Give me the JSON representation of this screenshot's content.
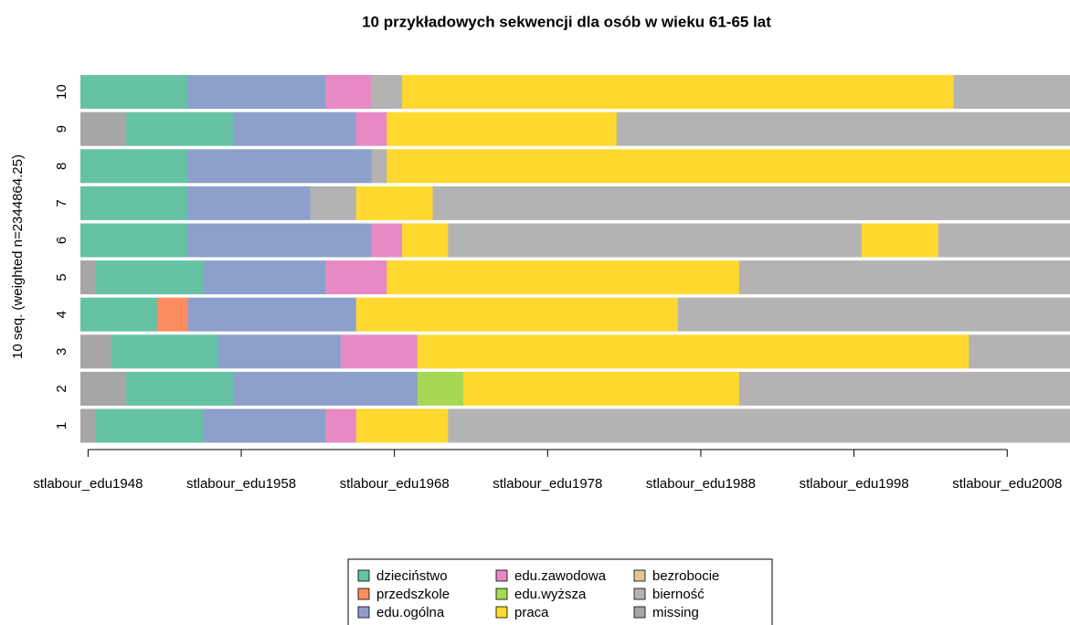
{
  "chart_data": {
    "type": "sequence-index",
    "title": "10 przykładowych sekwencji dla osób w wieku 61-65 lat",
    "y_label": "10 seq. (weighted n=2344864.25)",
    "xlim": [
      1947.5,
      2012.1
    ],
    "xticks": [
      {
        "value": 1948,
        "label": "stlabour_edu1948"
      },
      {
        "value": 1958,
        "label": "stlabour_edu1958"
      },
      {
        "value": 1968,
        "label": "stlabour_edu1968"
      },
      {
        "value": 1978,
        "label": "stlabour_edu1978"
      },
      {
        "value": 1988,
        "label": "stlabour_edu1988"
      },
      {
        "value": 1998,
        "label": "stlabour_edu1998"
      },
      {
        "value": 2008,
        "label": "stlabour_edu2008"
      }
    ],
    "states": [
      {
        "name": "dzieciństwo",
        "color": "#66c2a5"
      },
      {
        "name": "przedszkole",
        "color": "#fc8d62"
      },
      {
        "name": "edu.ogólna",
        "color": "#8da0cb"
      },
      {
        "name": "edu.zawodowa",
        "color": "#e78ac3"
      },
      {
        "name": "edu.wyższa",
        "color": "#a6d854"
      },
      {
        "name": "praca",
        "color": "#ffd92f"
      },
      {
        "name": "bezrobocie",
        "color": "#e5c494"
      },
      {
        "name": "bierność",
        "color": "#b3b3b3"
      },
      {
        "name": "missing",
        "color": "#a6a6a6"
      }
    ],
    "sequences": [
      {
        "name": "1",
        "spells": [
          {
            "state": "missing",
            "years": 1
          },
          {
            "state": "dzieciństwo",
            "years": 7
          },
          {
            "state": "edu.ogólna",
            "years": 8
          },
          {
            "state": "edu.zawodowa",
            "years": 2
          },
          {
            "state": "praca",
            "years": 6
          },
          {
            "state": "bierność",
            "years": 41
          }
        ]
      },
      {
        "name": "2",
        "spells": [
          {
            "state": "missing",
            "years": 3
          },
          {
            "state": "dzieciństwo",
            "years": 7
          },
          {
            "state": "edu.ogólna",
            "years": 12
          },
          {
            "state": "edu.wyższa",
            "years": 3
          },
          {
            "state": "praca",
            "years": 18
          },
          {
            "state": "bierność",
            "years": 22
          }
        ]
      },
      {
        "name": "3",
        "spells": [
          {
            "state": "missing",
            "years": 2
          },
          {
            "state": "dzieciństwo",
            "years": 7
          },
          {
            "state": "edu.ogólna",
            "years": 8
          },
          {
            "state": "edu.zawodowa",
            "years": 5
          },
          {
            "state": "praca",
            "years": 36
          },
          {
            "state": "bierność",
            "years": 7
          }
        ]
      },
      {
        "name": "4",
        "spells": [
          {
            "state": "dzieciństwo",
            "years": 5
          },
          {
            "state": "przedszkole",
            "years": 2
          },
          {
            "state": "edu.ogólna",
            "years": 11
          },
          {
            "state": "praca",
            "years": 21
          },
          {
            "state": "bierność",
            "years": 26
          }
        ]
      },
      {
        "name": "5",
        "spells": [
          {
            "state": "missing",
            "years": 1
          },
          {
            "state": "dzieciństwo",
            "years": 7
          },
          {
            "state": "edu.ogólna",
            "years": 8
          },
          {
            "state": "edu.zawodowa",
            "years": 4
          },
          {
            "state": "praca",
            "years": 23
          },
          {
            "state": "bierność",
            "years": 22
          }
        ]
      },
      {
        "name": "6",
        "spells": [
          {
            "state": "dzieciństwo",
            "years": 7
          },
          {
            "state": "edu.ogólna",
            "years": 12
          },
          {
            "state": "edu.zawodowa",
            "years": 2
          },
          {
            "state": "praca",
            "years": 3
          },
          {
            "state": "bierność",
            "years": 27
          },
          {
            "state": "praca",
            "years": 5
          },
          {
            "state": "bierność",
            "years": 9
          }
        ]
      },
      {
        "name": "7",
        "spells": [
          {
            "state": "dzieciństwo",
            "years": 7
          },
          {
            "state": "edu.ogólna",
            "years": 8
          },
          {
            "state": "bierność",
            "years": 3
          },
          {
            "state": "praca",
            "years": 5
          },
          {
            "state": "bierność",
            "years": 42
          }
        ]
      },
      {
        "name": "8",
        "spells": [
          {
            "state": "dzieciństwo",
            "years": 7
          },
          {
            "state": "edu.ogólna",
            "years": 12
          },
          {
            "state": "bierność",
            "years": 1
          },
          {
            "state": "praca",
            "years": 45
          }
        ]
      },
      {
        "name": "9",
        "spells": [
          {
            "state": "missing",
            "years": 3
          },
          {
            "state": "dzieciństwo",
            "years": 7
          },
          {
            "state": "edu.ogólna",
            "years": 8
          },
          {
            "state": "edu.zawodowa",
            "years": 2
          },
          {
            "state": "praca",
            "years": 15
          },
          {
            "state": "bierność",
            "years": 30
          }
        ]
      },
      {
        "name": "10",
        "spells": [
          {
            "state": "dzieciństwo",
            "years": 7
          },
          {
            "state": "edu.ogólna",
            "years": 9
          },
          {
            "state": "edu.zawodowa",
            "years": 3
          },
          {
            "state": "bierność",
            "years": 2
          },
          {
            "state": "praca",
            "years": 36
          },
          {
            "state": "bierność",
            "years": 8
          }
        ]
      }
    ]
  }
}
